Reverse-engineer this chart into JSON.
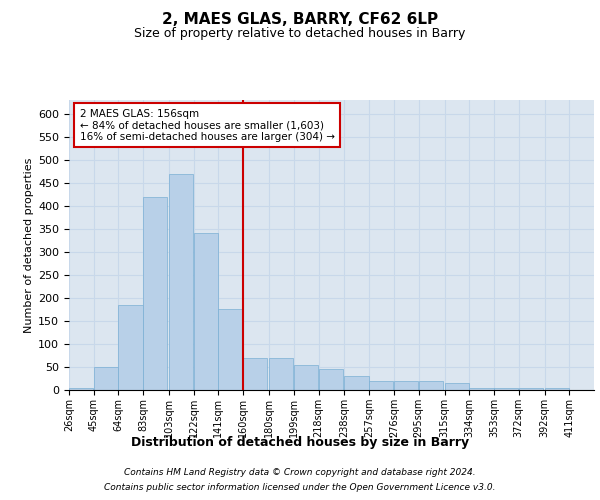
{
  "title": "2, MAES GLAS, BARRY, CF62 6LP",
  "subtitle": "Size of property relative to detached houses in Barry",
  "xlabel": "Distribution of detached houses by size in Barry",
  "ylabel": "Number of detached properties",
  "bins": [
    26,
    45,
    64,
    83,
    103,
    122,
    141,
    160,
    180,
    199,
    218,
    238,
    257,
    276,
    295,
    315,
    334,
    353,
    372,
    392,
    411
  ],
  "bar_heights": [
    5,
    50,
    185,
    420,
    470,
    340,
    175,
    70,
    70,
    55,
    45,
    30,
    20,
    20,
    20,
    15,
    5,
    5,
    5,
    5
  ],
  "bar_color": "#b8d0e8",
  "bar_edge_color": "#7aafd4",
  "grid_color": "#c8d8ea",
  "vline_x": 160,
  "vline_color": "#cc0000",
  "annotation_title": "2 MAES GLAS: 156sqm",
  "annotation_line1": "← 84% of detached houses are smaller (1,603)",
  "annotation_line2": "16% of semi-detached houses are larger (304) →",
  "annotation_box_color": "#ffffff",
  "annotation_box_edge": "#cc0000",
  "footer_line1": "Contains HM Land Registry data © Crown copyright and database right 2024.",
  "footer_line2": "Contains public sector information licensed under the Open Government Licence v3.0.",
  "ylim": [
    0,
    630
  ],
  "yticks": [
    0,
    50,
    100,
    150,
    200,
    250,
    300,
    350,
    400,
    450,
    500,
    550,
    600
  ],
  "background_color": "#dce6f0",
  "title_fontsize": 11,
  "subtitle_fontsize": 9
}
